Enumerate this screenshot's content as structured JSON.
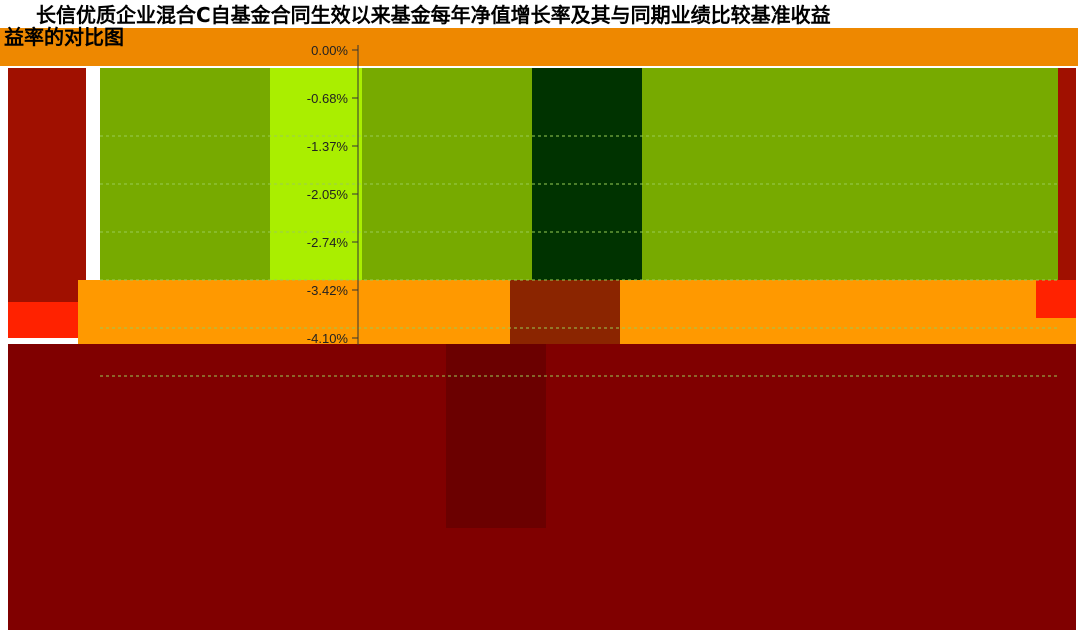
{
  "chart_data": {
    "type": "bar",
    "title_line1": "长信优质企业混合C自基金合同生效以来基金每年净值增长率及其与同期业绩比较基准收益",
    "title_line2": "益率的对比图",
    "y_ticks": [
      "0.00%",
      "-0.68%",
      "-1.37%",
      "-2.05%",
      "-2.74%",
      "-3.42%",
      "-4.10%"
    ],
    "ylim": [
      -4.1,
      0
    ],
    "grid": true,
    "colors": {
      "background": "#800000",
      "plot_area": "#77aa00",
      "band_light": "#aaee00",
      "band_dark": "#003300",
      "lower_band": "#ff9900",
      "lower_band_dark": "#8b2500",
      "accent_red": "#ff2200",
      "deep_red": "#6b0000",
      "header_band": "#ee8800"
    }
  }
}
